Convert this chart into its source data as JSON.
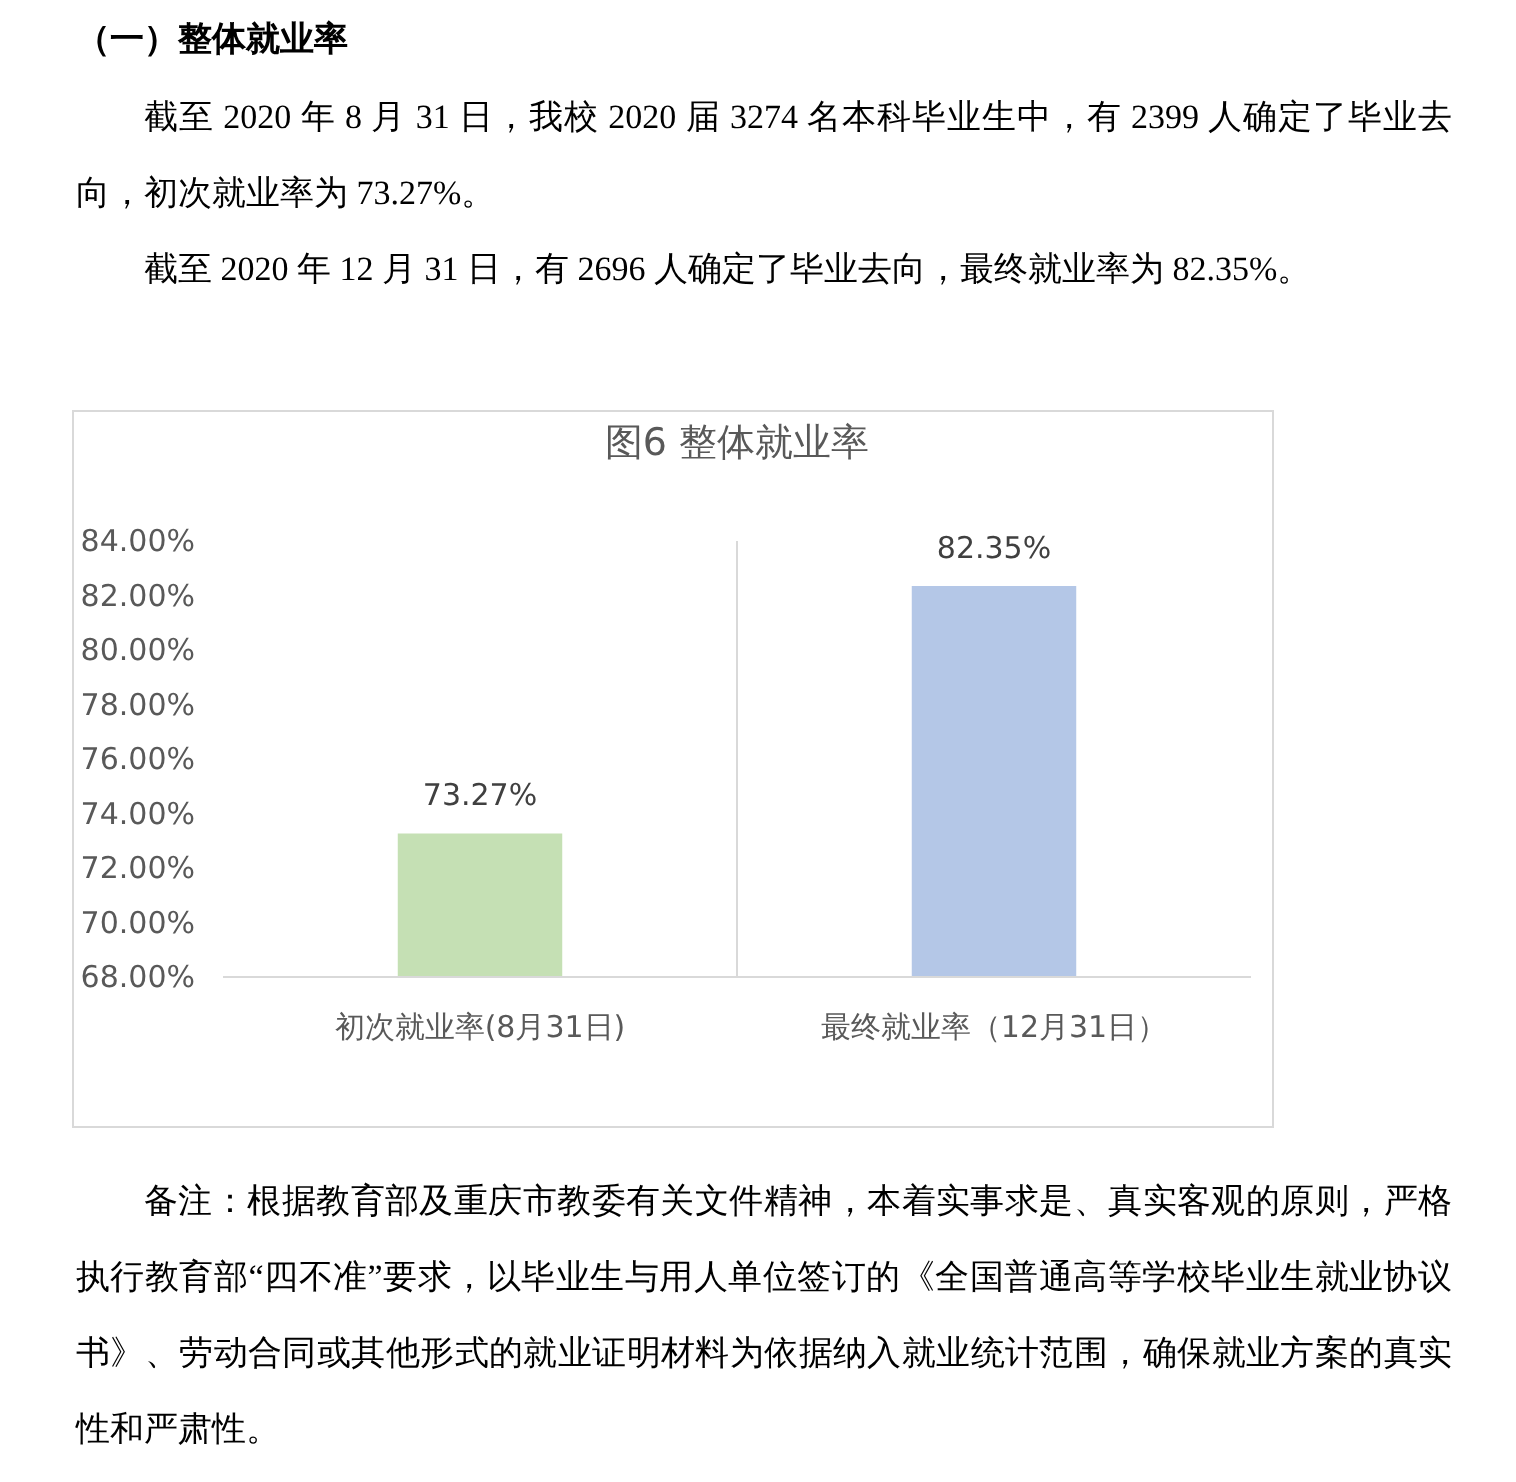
{
  "chart_data": {
    "type": "bar",
    "title": "图6 整体就业率",
    "categories": [
      "初次就业率(8月31日)",
      "最终就业率（12月31日）"
    ],
    "values": [
      73.27,
      82.35
    ],
    "colors": [
      "#c5e0b4",
      "#b4c7e7"
    ],
    "value_labels": [
      "73.27%",
      "82.35%"
    ],
    "ylim": [
      68,
      84
    ],
    "yticks": [
      {
        "value": 68,
        "label": "68.00%"
      },
      {
        "value": 70,
        "label": "70.00%"
      },
      {
        "value": 72,
        "label": "72.00%"
      },
      {
        "value": 74,
        "label": "74.00%"
      },
      {
        "value": 76,
        "label": "76.00%"
      },
      {
        "value": 78,
        "label": "78.00%"
      },
      {
        "value": 80,
        "label": "80.00%"
      },
      {
        "value": 82,
        "label": "82.00%"
      },
      {
        "value": 84,
        "label": "84.00%"
      }
    ],
    "grid": "x",
    "annotations": [
      "（一）整体就业率",
      "截至 2020 年 8 月 31 日，我校 2020 届 3274 名本科毕业生中，有 2399 人确定了毕业去向，初次就业率为 73.27%。",
      "截至 2020 年 12 月 31 日，有 2696 人确定了毕业去向，最终就业率为 82.35%。",
      "备注：根据教育部及重庆市教委有关文件精神，本着实事求是、真实客观的原则，严格执行教育部“四不准”要求，以毕业生与用人单位签订的《全国普通高等学校毕业生就业协议书》、劳动合同或其他形式的就业证明材料为依据纳入就业统计范围，确保就业方案的真实性和严肃性。"
    ]
  }
}
